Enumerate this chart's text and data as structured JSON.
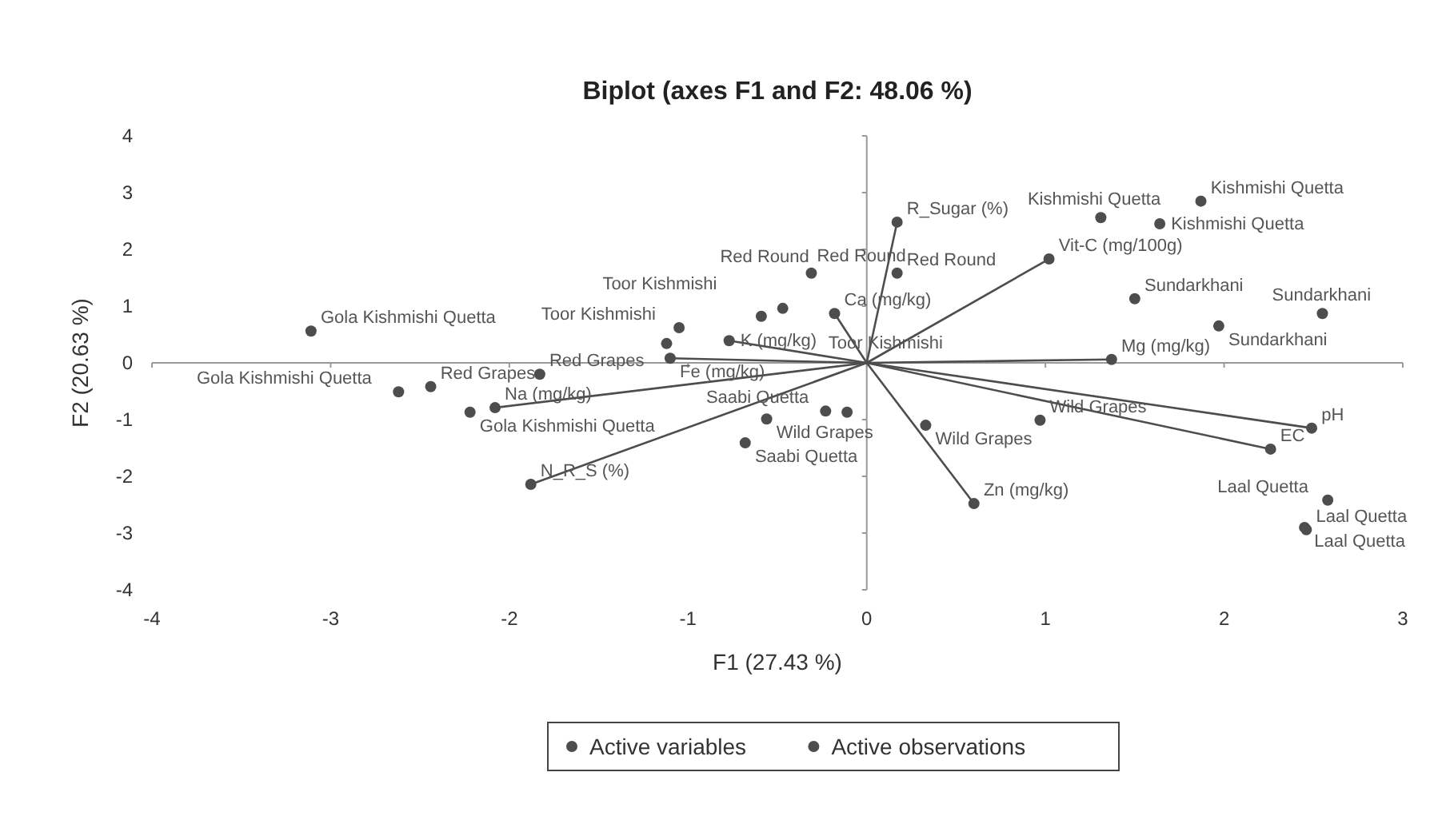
{
  "chart_data": {
    "type": "scatter",
    "title": "Biplot (axes F1 and F2: 48.06 %)",
    "xlabel": "F1 (27.43 %)",
    "ylabel": "F2 (20.63 %)",
    "xlim": [
      -4,
      3
    ],
    "xticks": [
      -4,
      -3,
      -2,
      -1,
      0,
      1,
      2,
      3
    ],
    "ylim": [
      -4,
      4
    ],
    "yticks": [
      -4,
      -3,
      -2,
      -1,
      0,
      1,
      2,
      3,
      4
    ],
    "legend": "bottom",
    "marker": "circle",
    "series": [
      {
        "name": "Active variables",
        "type": "lollipop",
        "color": "#4d4d4d",
        "x": [
          0.17,
          1.02,
          1.37,
          2.49,
          2.26,
          0.6,
          -1.88,
          -2.08,
          -1.1,
          -0.77,
          -0.18
        ],
        "values": [
          2.48,
          1.83,
          0.06,
          -1.15,
          -1.52,
          -2.48,
          -2.14,
          -0.79,
          0.08,
          0.39,
          0.87
        ]
      },
      {
        "name": "Active observations",
        "color": "#4d4d4d",
        "x": [
          -3.11,
          -2.22,
          -2.62,
          -2.44,
          -1.83,
          -1.05,
          -1.12,
          -0.59,
          -0.47,
          -0.31,
          0.17,
          1.31,
          1.64,
          1.87,
          1.5,
          1.97,
          2.55,
          -0.56,
          -0.68,
          -0.23,
          -0.11,
          0.33,
          0.97,
          2.58,
          2.45,
          2.46
        ],
        "values": [
          0.56,
          -0.87,
          -0.51,
          -0.42,
          -0.2,
          0.62,
          0.34,
          0.82,
          0.96,
          1.58,
          1.58,
          2.56,
          2.45,
          2.85,
          1.13,
          0.65,
          0.87,
          -0.99,
          -1.41,
          -0.85,
          -0.87,
          -1.1,
          -1.01,
          -2.42,
          -2.9,
          -2.94
        ]
      }
    ],
    "annotations": [
      {
        "text": "R_Sugar (%)",
        "x": 0.17,
        "y": 2.48
      },
      {
        "text": "Vit-C (mg/100g)",
        "x": 1.02,
        "y": 1.83
      },
      {
        "text": "Mg (mg/kg)",
        "x": 1.37,
        "y": 0.06
      },
      {
        "text": "pH",
        "x": 2.49,
        "y": -1.15
      },
      {
        "text": "EC",
        "x": 2.26,
        "y": -1.52
      },
      {
        "text": "Zn (mg/kg)",
        "x": 0.6,
        "y": -2.48
      },
      {
        "text": "N_R_S (%)",
        "x": -1.88,
        "y": -2.14
      },
      {
        "text": "Na (mg/kg)",
        "x": -2.08,
        "y": -0.79
      },
      {
        "text": "Fe (mg/kg)",
        "x": -1.1,
        "y": 0.08
      },
      {
        "text": "K (mg/kg)",
        "x": -0.77,
        "y": 0.39
      },
      {
        "text": "Ca (mg/kg)",
        "x": -0.18,
        "y": 0.87
      },
      {
        "text": "Gola Kishmishi Quetta",
        "x": -3.11,
        "y": 0.56
      },
      {
        "text": "Gola Kishmishi Quetta",
        "x": -2.22,
        "y": -0.87
      },
      {
        "text": "Gola Kishmishi Quetta",
        "x": -2.62,
        "y": -0.51
      },
      {
        "text": "Red Grapes",
        "x": -2.44,
        "y": -0.42
      },
      {
        "text": "Red Grapes",
        "x": -1.83,
        "y": -0.2
      },
      {
        "text": "Toor Kishmishi",
        "x": -1.05,
        "y": 0.62
      },
      {
        "text": "Toor Kishmishi",
        "x": -1.12,
        "y": 0.34
      },
      {
        "text": "Red Round",
        "x": -0.59,
        "y": 0.82
      },
      {
        "text": "Toor Kishmishi",
        "x": -0.47,
        "y": 0.96
      },
      {
        "text": "Red Round",
        "x": -0.31,
        "y": 1.58
      },
      {
        "text": "Red Round",
        "x": 0.17,
        "y": 1.58
      },
      {
        "text": "Kishmishi Quetta",
        "x": 1.31,
        "y": 2.56
      },
      {
        "text": "Kishmishi Quetta",
        "x": 1.64,
        "y": 2.45
      },
      {
        "text": "Kishmishi Quetta",
        "x": 1.87,
        "y": 2.85
      },
      {
        "text": "Sundarkhani",
        "x": 1.5,
        "y": 1.13
      },
      {
        "text": "Sundarkhani",
        "x": 1.97,
        "y": 0.65
      },
      {
        "text": "Sundarkhani",
        "x": 2.55,
        "y": 0.87
      },
      {
        "text": "Wild Grapes",
        "x": -0.56,
        "y": -0.99
      },
      {
        "text": "Saabi Quetta",
        "x": -0.68,
        "y": -1.41
      },
      {
        "text": "Saabi Quetta",
        "x": -0.23,
        "y": -0.85
      },
      {
        "text": "Wild Grapes",
        "x": 0.33,
        "y": -1.1
      },
      {
        "text": "Wild Grapes",
        "x": 0.97,
        "y": -1.01
      },
      {
        "text": "Laal Quetta",
        "x": 2.58,
        "y": -2.42
      },
      {
        "text": "Laal Quetta",
        "x": 2.45,
        "y": -2.9
      },
      {
        "text": "Laal Quetta",
        "x": 2.46,
        "y": -2.94
      }
    ]
  }
}
